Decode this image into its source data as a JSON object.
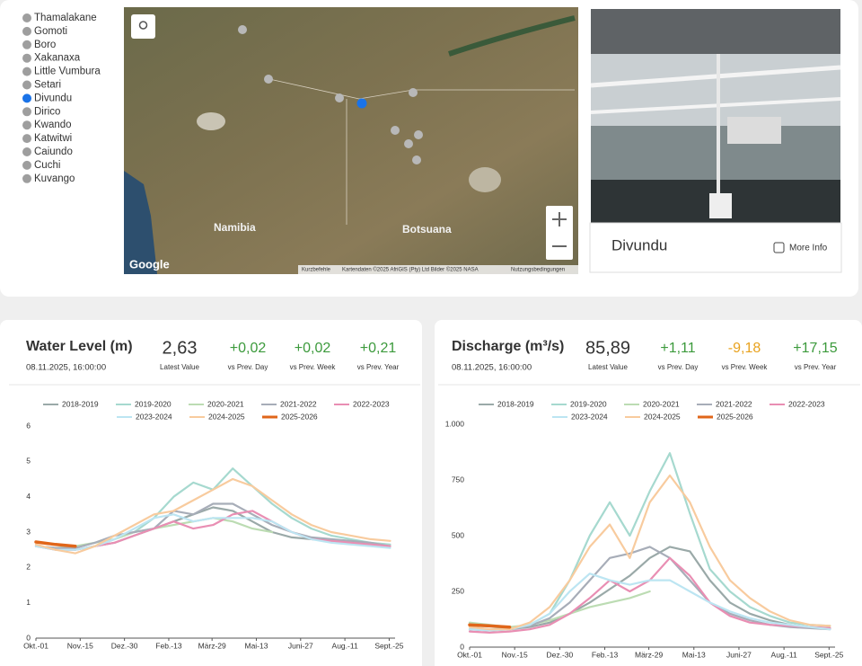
{
  "stations": [
    {
      "name": "Thamalakane",
      "color": "#9e9e9e"
    },
    {
      "name": "Gomoti",
      "color": "#9e9e9e"
    },
    {
      "name": "Boro",
      "color": "#9e9e9e"
    },
    {
      "name": "Xakanaxa",
      "color": "#9e9e9e"
    },
    {
      "name": "Little Vumbura",
      "color": "#9e9e9e"
    },
    {
      "name": "Setari",
      "color": "#9e9e9e"
    },
    {
      "name": "Divundu",
      "color": "#1a73e8"
    },
    {
      "name": "Dirico",
      "color": "#9e9e9e"
    },
    {
      "name": "Kwando",
      "color": "#9e9e9e"
    },
    {
      "name": "Katwitwi",
      "color": "#9e9e9e"
    },
    {
      "name": "Caiundo",
      "color": "#9e9e9e"
    },
    {
      "name": "Cuchi",
      "color": "#9e9e9e"
    },
    {
      "name": "Kuvango",
      "color": "#9e9e9e"
    }
  ],
  "map": {
    "labels": [
      "Namibia",
      "Botsuana"
    ],
    "logo": "Google",
    "footer": [
      "Kurzbefehle",
      "Kartendaten ©2025 AfriGIS (Pty) Ltd Bilder ©2025 NASA",
      "Nutzungsbedingungen"
    ]
  },
  "card": {
    "title": "Divundu",
    "checkbox": "More Info"
  },
  "panels": [
    {
      "title": "Water Level (m)",
      "timestamp": "08.11.2025, 16:00:00",
      "metrics": [
        {
          "value": "2,63",
          "label": "Latest Value",
          "color": "#333333"
        },
        {
          "value": "+0,02",
          "label": "vs Prev. Day",
          "color": "#3c9a3c"
        },
        {
          "value": "+0,02",
          "label": "vs Prev. Week",
          "color": "#3c9a3c"
        },
        {
          "value": "+0,21",
          "label": "vs Prev. Year",
          "color": "#3c9a3c"
        }
      ]
    },
    {
      "title": "Discharge (m³/s)",
      "timestamp": "08.11.2025, 16:00:00",
      "metrics": [
        {
          "value": "85,89",
          "label": "Latest Value",
          "color": "#333333"
        },
        {
          "value": "+1,11",
          "label": "vs Prev. Day",
          "color": "#3c9a3c"
        },
        {
          "value": "-9,18",
          "label": "vs Prev. Week",
          "color": "#e8a21e"
        },
        {
          "value": "+17,15",
          "label": "vs Prev. Year",
          "color": "#3c9a3c"
        }
      ]
    }
  ],
  "chart_data": [
    {
      "type": "line",
      "legend": "top",
      "grid": false,
      "x": [
        0,
        20,
        40,
        60,
        80,
        100,
        120,
        140,
        160,
        180,
        200,
        220,
        240,
        260,
        280,
        300,
        320,
        340,
        360
      ],
      "xlim": [
        0,
        365
      ],
      "xticks": [
        {
          "value": 0,
          "label": "Okt.-01"
        },
        {
          "value": 45,
          "label": "Nov.-15"
        },
        {
          "value": 90,
          "label": "Dez.-30"
        },
        {
          "value": 135,
          "label": "Feb.-13"
        },
        {
          "value": 179,
          "label": "März-29"
        },
        {
          "value": 224,
          "label": "Mai-13"
        },
        {
          "value": 269,
          "label": "Juni-27"
        },
        {
          "value": 314,
          "label": "Aug.-11"
        },
        {
          "value": 359,
          "label": "Sept.-25"
        }
      ],
      "ylim": [
        0,
        6
      ],
      "yticks": [
        0,
        1,
        2,
        3,
        4,
        5,
        6
      ],
      "series": [
        {
          "name": "2018-2019",
          "color": "#9aa9a8",
          "values": [
            2.6,
            2.55,
            2.5,
            2.6,
            2.7,
            2.9,
            3.1,
            3.3,
            3.5,
            3.7,
            3.6,
            3.3,
            3.0,
            2.85,
            2.8,
            2.75,
            2.7,
            2.65,
            2.6
          ]
        },
        {
          "name": "2019-2020",
          "color": "#a6d9cf",
          "values": [
            2.6,
            2.5,
            2.5,
            2.6,
            2.8,
            3.0,
            3.4,
            4.0,
            4.4,
            4.2,
            4.8,
            4.3,
            3.8,
            3.4,
            3.1,
            2.9,
            2.8,
            2.7,
            2.65
          ]
        },
        {
          "name": "2020-2021",
          "color": "#bcdcb3",
          "values": [
            2.6,
            2.55,
            2.6,
            2.7,
            2.8,
            3.0,
            3.1,
            3.2,
            3.3,
            3.4,
            3.3,
            3.1,
            3.0,
            null,
            null,
            null,
            null,
            null,
            null
          ]
        },
        {
          "name": "2021-2022",
          "color": "#a7adb8",
          "values": [
            2.6,
            2.55,
            2.55,
            2.7,
            2.9,
            3.0,
            3.1,
            3.6,
            3.5,
            3.8,
            3.8,
            3.5,
            3.2,
            3.0,
            2.85,
            2.8,
            2.75,
            2.7,
            2.6
          ]
        },
        {
          "name": "2022-2023",
          "color": "#e98eb3",
          "values": [
            2.6,
            2.5,
            2.5,
            2.6,
            2.7,
            2.9,
            3.1,
            3.3,
            3.1,
            3.2,
            3.5,
            3.6,
            3.3,
            3.0,
            2.8,
            2.75,
            2.7,
            2.65,
            2.6
          ]
        },
        {
          "name": "2023-2024",
          "color": "#bce5f2",
          "values": [
            2.6,
            2.5,
            2.5,
            2.6,
            2.8,
            3.1,
            3.4,
            3.5,
            3.3,
            3.4,
            3.4,
            3.4,
            3.3,
            3.0,
            2.8,
            2.7,
            2.65,
            2.6,
            2.55
          ]
        },
        {
          "name": "2024-2025",
          "color": "#f8cb9e",
          "values": [
            2.65,
            2.5,
            2.4,
            2.6,
            2.9,
            3.2,
            3.5,
            3.6,
            3.9,
            4.2,
            4.5,
            4.3,
            3.9,
            3.5,
            3.2,
            3.0,
            2.9,
            2.8,
            2.75
          ]
        },
        {
          "name": "2025-2026",
          "color": "#e0661a",
          "values": [
            2.72,
            2.65,
            2.6,
            null,
            null,
            null,
            null,
            null,
            null,
            null,
            null,
            null,
            null,
            null,
            null,
            null,
            null,
            null,
            null
          ]
        }
      ]
    },
    {
      "type": "line",
      "legend": "top",
      "grid": false,
      "x": [
        0,
        20,
        40,
        60,
        80,
        100,
        120,
        140,
        160,
        180,
        200,
        220,
        240,
        260,
        280,
        300,
        320,
        340,
        360
      ],
      "xlim": [
        0,
        365
      ],
      "xticks": [
        {
          "value": 0,
          "label": "Okt.-01"
        },
        {
          "value": 45,
          "label": "Nov.-15"
        },
        {
          "value": 90,
          "label": "Dez.-30"
        },
        {
          "value": 135,
          "label": "Feb.-13"
        },
        {
          "value": 179,
          "label": "März-29"
        },
        {
          "value": 224,
          "label": "Mai-13"
        },
        {
          "value": 269,
          "label": "Juni-27"
        },
        {
          "value": 314,
          "label": "Aug.-11"
        },
        {
          "value": 359,
          "label": "Sept.-25"
        }
      ],
      "ylim": [
        0,
        1000
      ],
      "yticks": [
        0,
        250,
        500,
        750,
        {
          "value": 1000,
          "label": "1.000"
        }
      ],
      "series": [
        {
          "name": "2018-2019",
          "color": "#9aa9a8",
          "values": [
            80,
            75,
            80,
            90,
            110,
            150,
            200,
            260,
            320,
            400,
            450,
            430,
            300,
            200,
            150,
            120,
            100,
            90,
            85
          ]
        },
        {
          "name": "2019-2020",
          "color": "#a6d9cf",
          "values": [
            90,
            80,
            85,
            100,
            150,
            300,
            500,
            650,
            500,
            700,
            870,
            600,
            350,
            250,
            180,
            140,
            110,
            100,
            95
          ]
        },
        {
          "name": "2020-2021",
          "color": "#bcdcb3",
          "values": [
            110,
            100,
            90,
            100,
            120,
            150,
            180,
            200,
            220,
            250,
            null,
            null,
            null,
            null,
            null,
            null,
            null,
            null,
            null
          ]
        },
        {
          "name": "2021-2022",
          "color": "#a7adb8",
          "values": [
            80,
            75,
            80,
            95,
            130,
            200,
            300,
            400,
            420,
            450,
            400,
            300,
            200,
            150,
            120,
            100,
            90,
            85,
            80
          ]
        },
        {
          "name": "2022-2023",
          "color": "#e98eb3",
          "values": [
            70,
            65,
            70,
            80,
            100,
            150,
            220,
            300,
            250,
            300,
            400,
            320,
            200,
            140,
            110,
            100,
            95,
            90,
            85
          ]
        },
        {
          "name": "2023-2024",
          "color": "#bce5f2",
          "values": [
            80,
            75,
            80,
            100,
            150,
            250,
            330,
            300,
            280,
            300,
            300,
            250,
            200,
            160,
            130,
            110,
            100,
            90,
            80
          ]
        },
        {
          "name": "2024-2025",
          "color": "#f8cb9e",
          "values": [
            90,
            80,
            80,
            110,
            180,
            300,
            450,
            550,
            400,
            650,
            770,
            650,
            450,
            300,
            220,
            160,
            120,
            100,
            95
          ]
        },
        {
          "name": "2025-2026",
          "color": "#e0661a",
          "values": [
            100,
            95,
            90,
            null,
            null,
            null,
            null,
            null,
            null,
            null,
            null,
            null,
            null,
            null,
            null,
            null,
            null,
            null,
            null
          ]
        }
      ]
    }
  ]
}
